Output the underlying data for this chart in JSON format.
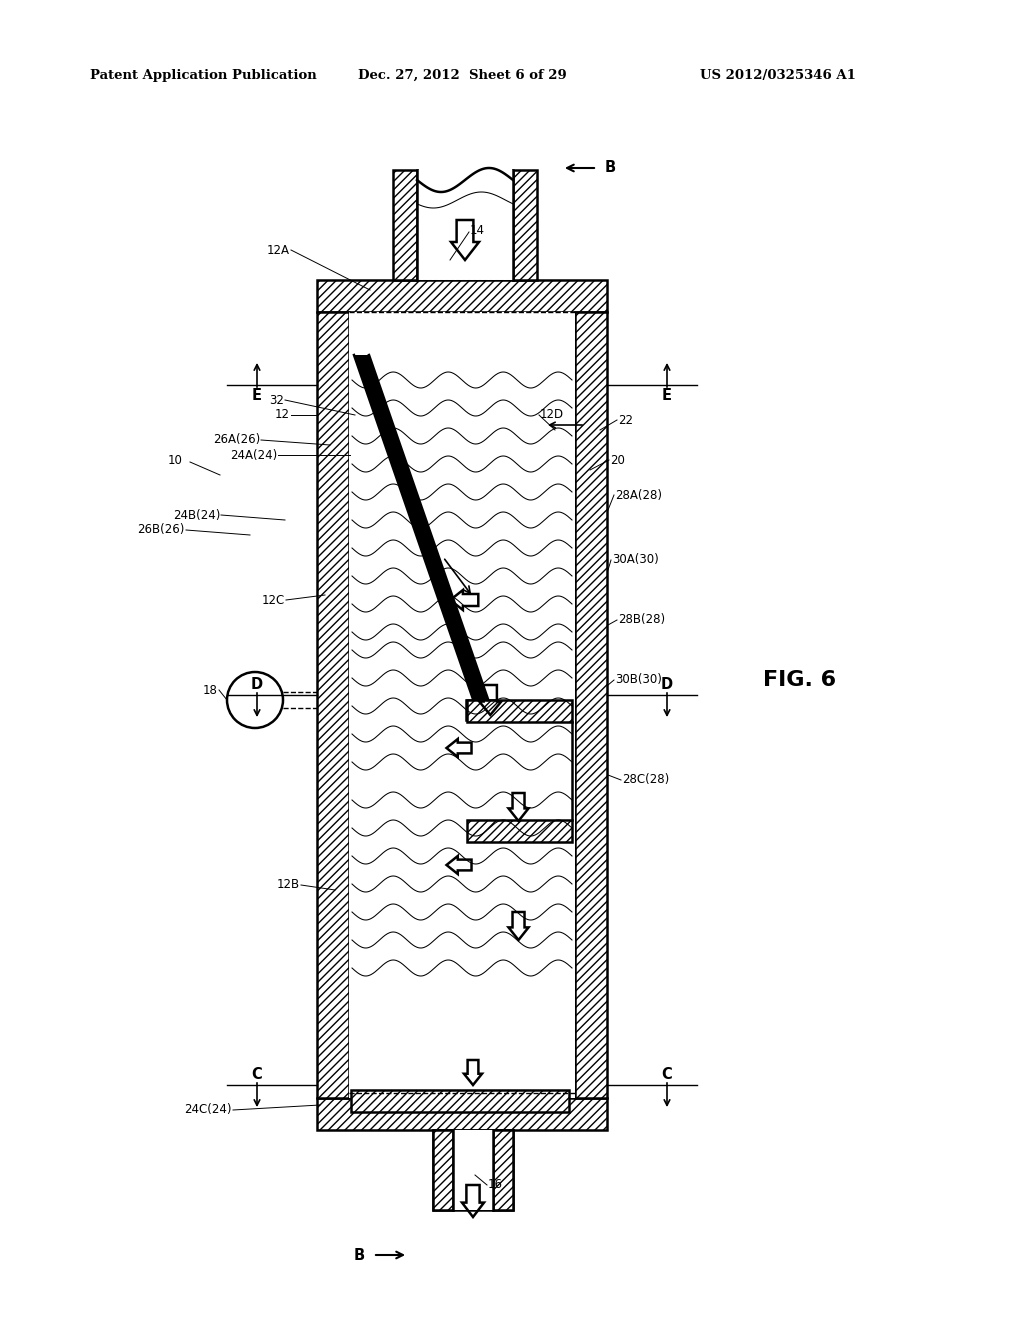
{
  "bg_color": "#ffffff",
  "header_left": "Patent Application Publication",
  "header_mid": "Dec. 27, 2012  Sheet 6 of 29",
  "header_right": "US 2012/0325346 A1",
  "fig_label": "FIG. 6",
  "lw_main": 1.8,
  "lw_med": 1.3,
  "lw_thin": 0.75,
  "lw_leader": 0.7,
  "label_fs": 8.5,
  "section_fs": 10.5
}
